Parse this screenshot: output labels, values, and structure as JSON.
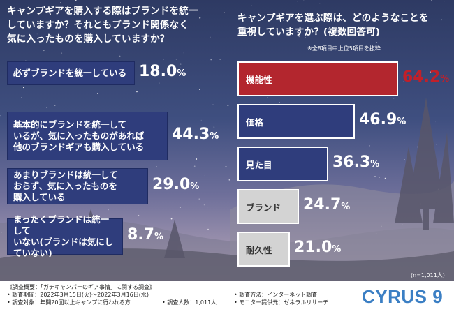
{
  "left_title": "キャンプギアを購入する際はブランドを統一\nしていますか？それともブランド関係なく\n気に入ったものを購入していますか？",
  "right_title": "キャンプギアを選ぶ際は、どのようなことを\n重視していますか？(複数回答可)",
  "right_note": "※全8項目中上位5項目を抜粋",
  "sample_size": "(n=1,011人)",
  "percent_sign": "%",
  "footer": {
    "summary": "《調査概要：「ガチキャンパーのギア事情」に関する調査》",
    "period": "• 調査期間：2022年3月15日(火)～2022年3月16日(水)",
    "target": "• 調査対象：年間20回以上キャンプに行われる方",
    "count": "• 調査人数：1,011人",
    "method": "• 調査方法：インターネット調査",
    "provider": "• モニター提供元：ゼネラルリサーチ"
  },
  "brand": "CYRUS 9",
  "colors": {
    "left_box": "#2f3d7c",
    "bar_red": "#b3262e",
    "bar_blue": "#2f3d7c",
    "bar_gray": "#d3d3d3",
    "value_red": "#c0202a"
  },
  "chart_data": [
    {
      "type": "bar",
      "title": "キャンプギアを購入する際はブランドを統一していますか？それともブランド関係なく気に入ったものを購入していますか？",
      "categories": [
        "必ずブランドを統一している",
        "基本的にブランドを統一して\nいるが、気に入ったものがあれば\n他のブランドギアも購入している",
        "あまりブランドは統一して\nおらず、気に入ったものを\n購入している",
        "まったくブランドは統一して\nいない(ブランドは気にしていない)"
      ],
      "values": [
        18.0,
        44.3,
        29.0,
        8.7
      ],
      "value_labels": [
        "18.0",
        "44.3",
        "29.0",
        "8.7"
      ],
      "unit": "%"
    },
    {
      "type": "bar",
      "title": "キャンプギアを選ぶ際は、どのようなことを重視していますか？(複数回答可)",
      "categories": [
        "機能性",
        "価格",
        "見た目",
        "ブランド",
        "耐久性"
      ],
      "values": [
        64.2,
        46.9,
        36.3,
        24.7,
        21.0
      ],
      "value_labels": [
        "64.2",
        "46.9",
        "36.3",
        "24.7",
        "21.0"
      ],
      "unit": "%"
    }
  ]
}
